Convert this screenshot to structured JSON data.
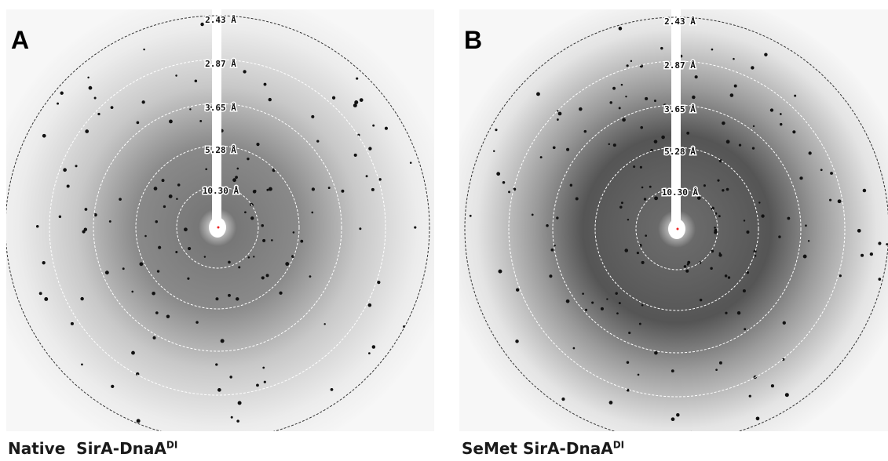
{
  "panels": [
    {
      "label": "A",
      "rings": [
        "2.43 Å",
        "2.87 Å",
        "3.65 Å",
        "5.28 Å",
        "10.30 Å"
      ],
      "caption": {
        "text": "Native  SirA-DnaA",
        "sup": "DI"
      }
    },
    {
      "label": "B",
      "rings": [
        "2.43 Å",
        "2.87 Å",
        "3.65 Å",
        "5.28 Å",
        "10.30 Å"
      ],
      "caption": {
        "text": "SeMet SirA-DnaA",
        "sup": "DI"
      }
    }
  ]
}
